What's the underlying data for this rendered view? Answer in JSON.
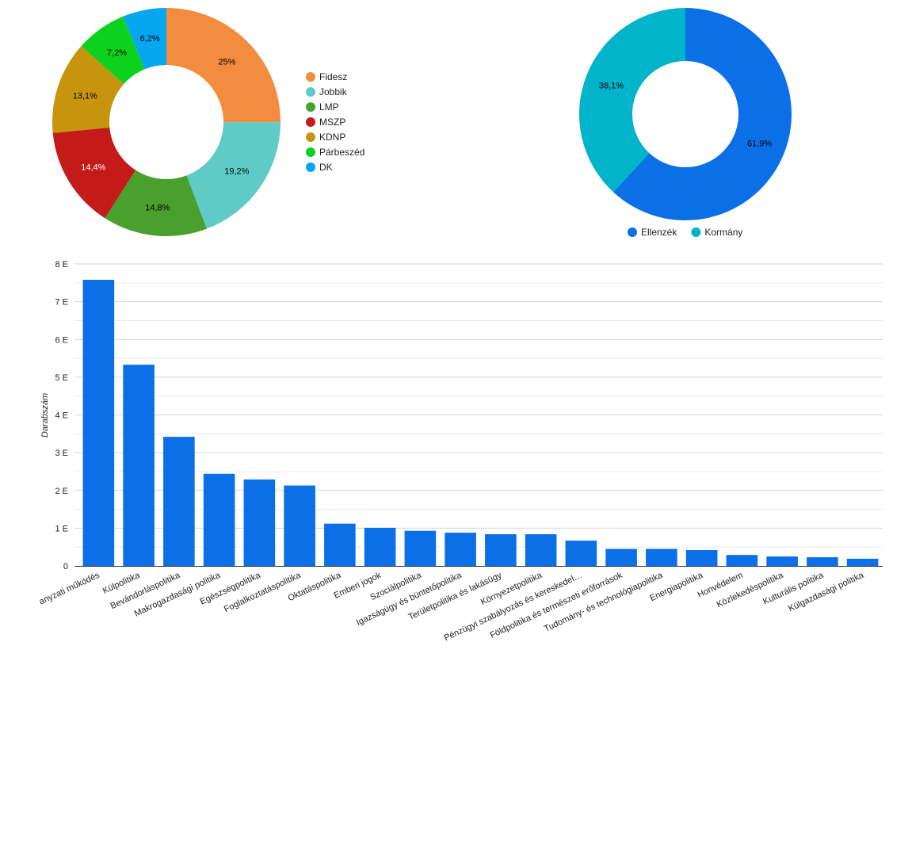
{
  "charts": [
    {
      "type": "pie",
      "variant": "donut",
      "chart_data": {
        "type": "pie",
        "slices": [
          {
            "label": "Fidesz",
            "value": 25,
            "value_label": "25%",
            "color": "#f28c3f",
            "label_color": "#000000"
          },
          {
            "label": "Jobbik",
            "value": 19.2,
            "value_label": "19,2%",
            "color": "#60cac6",
            "label_color": "#000000"
          },
          {
            "label": "LMP",
            "value": 14.8,
            "value_label": "14,8%",
            "color": "#4aa02c",
            "label_color": "#000000"
          },
          {
            "label": "MSZP",
            "value": 14.4,
            "value_label": "14,4%",
            "color": "#c41a1a",
            "label_color": "#ffffff"
          },
          {
            "label": "KDNP",
            "value": 13.1,
            "value_label": "13,1%",
            "color": "#c7950d",
            "label_color": "#000000"
          },
          {
            "label": "Párbeszéd",
            "value": 7.2,
            "value_label": "7,2%",
            "color": "#0dd21d",
            "label_color": "#000000"
          },
          {
            "label": "DK",
            "value": 6.2,
            "value_label": "6,2%",
            "color": "#07a6f0",
            "label_color": "#000000"
          }
        ],
        "legend": "right"
      }
    },
    {
      "type": "pie",
      "variant": "donut",
      "chart_data": {
        "type": "pie",
        "slices": [
          {
            "label": "Ellenzék",
            "value": 61.9,
            "value_label": "61,9%",
            "color": "#0b6fe8",
            "label_color": "#000000"
          },
          {
            "label": "Kormány",
            "value": 38.1,
            "value_label": "38,1%",
            "color": "#02b4c9",
            "label_color": "#000000"
          }
        ],
        "legend": "bottom"
      }
    },
    {
      "type": "bar",
      "chart_data": {
        "type": "bar",
        "ylabel": "Darabszám",
        "xlabel": "",
        "ylim": [
          0,
          8000
        ],
        "yticks": [
          {
            "value": 0,
            "label": "0"
          },
          {
            "value": 1000,
            "label": "1 E"
          },
          {
            "value": 2000,
            "label": "2 E"
          },
          {
            "value": 3000,
            "label": "3 E"
          },
          {
            "value": 4000,
            "label": "4 E"
          },
          {
            "value": 5000,
            "label": "5 E"
          },
          {
            "value": 6000,
            "label": "6 E"
          },
          {
            "value": 7000,
            "label": "7 E"
          },
          {
            "value": 8000,
            "label": "8 E"
          }
        ],
        "grid": true,
        "bar_color": "#0b6fe8",
        "categories": [
          "anyzati működés",
          "Külpolitika",
          "Bevándorláspolitika",
          "Makrogazdasági politika",
          "Egészségpolitika",
          "Foglalkoztatáspolitika",
          "Oktatáspolitika",
          "Emberi jogok",
          "Szociálpolitika",
          "Igazságügy és büntetőpolitika",
          "Területpolitika és lakásügy",
          "Környezetpolitika",
          "Pénzügyi szabályozás és kereskedel…",
          "Földpolitika és természeti erőforrások",
          "Tudomány- és technológiapolitika",
          "Energiapolitika",
          "Honvédelem",
          "Közlekedéspolitika",
          "Kulturális politika",
          "Külgazdasági politika"
        ],
        "values": [
          7580,
          5330,
          3420,
          2440,
          2290,
          2130,
          1120,
          1010,
          930,
          880,
          840,
          840,
          670,
          450,
          450,
          420,
          290,
          250,
          230,
          190
        ]
      }
    }
  ]
}
